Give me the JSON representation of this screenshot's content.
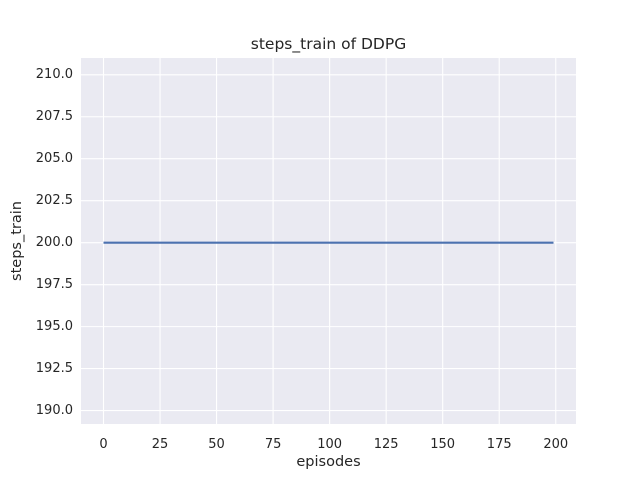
{
  "chart_data": {
    "type": "line",
    "title": "steps_train of DDPG",
    "xlabel": "episodes",
    "ylabel": "steps_train",
    "xlim": [
      -9.95,
      208.95
    ],
    "ylim": [
      189.2,
      211.0
    ],
    "x_ticks": [
      0,
      25,
      50,
      75,
      100,
      125,
      150,
      175,
      200
    ],
    "x_tick_labels": [
      "0",
      "25",
      "50",
      "75",
      "100",
      "125",
      "150",
      "175",
      "200"
    ],
    "y_ticks": [
      190.0,
      192.5,
      195.0,
      197.5,
      200.0,
      202.5,
      205.0,
      207.5,
      210.0
    ],
    "y_tick_labels": [
      "190.0",
      "192.5",
      "195.0",
      "197.5",
      "200.0",
      "202.5",
      "205.0",
      "207.5",
      "210.0"
    ],
    "grid": true,
    "legend": false,
    "series": [
      {
        "name": "steps_train",
        "description": "constant value 200 for every episode from 0 to 199",
        "x": [
          0,
          199
        ],
        "y": [
          200,
          200
        ],
        "color": "#4C72B0",
        "line_width": 2.2
      }
    ],
    "style": {
      "plot_background": "#eaeaf2",
      "grid_color": "#ffffff",
      "text_color": "#262626",
      "figure_background": "#ffffff"
    }
  }
}
